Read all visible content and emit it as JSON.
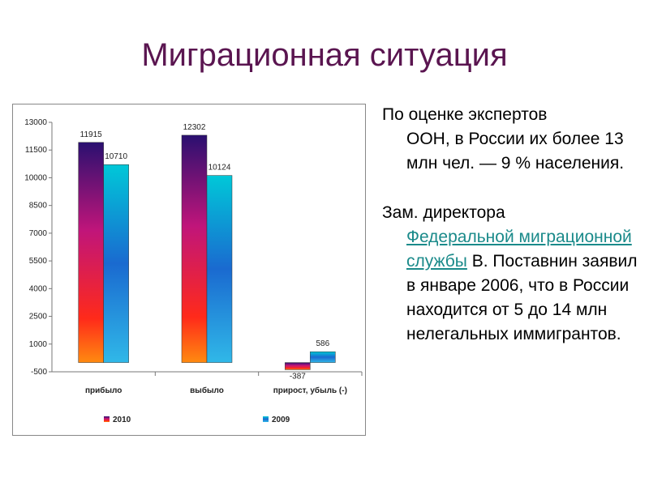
{
  "slide": {
    "title": "Миграционная ситуация"
  },
  "text": {
    "p1_lead": "По оценке экспертов",
    "p1_rest": "ООН, в России их более 13 млн чел. — 9 % населения.",
    "p2_lead": "Зам. директора",
    "p2_link": "Федеральной миграционной службы",
    "p2_rest": " В. Поставнин заявил в январе 2006, что в России находится от 5 до 14 млн нелегальных иммигрантов."
  },
  "chart_data": {
    "type": "bar",
    "categories": [
      "прибыло",
      "выбыло",
      "прирост, убыль (-)"
    ],
    "series": [
      {
        "name": "2010",
        "values": [
          11915,
          12302,
          -387
        ]
      },
      {
        "name": "2009",
        "values": [
          10710,
          10124,
          586
        ]
      }
    ],
    "data_labels": [
      [
        "11915",
        "12302",
        "-387"
      ],
      [
        "10710",
        "10124",
        "586"
      ]
    ],
    "yticks": [
      "13000",
      "11500",
      "10000",
      "8500",
      "7000",
      "5500",
      "4000",
      "2500",
      "1000",
      "-500"
    ],
    "ylim": [
      -500,
      13000
    ],
    "grid": false,
    "legend_position": "bottom",
    "colors": {
      "series_2010": [
        "#2a1070",
        "#c0157a",
        "#ff2a1a",
        "#ff8a10"
      ],
      "series_2009": [
        "#00c8d8",
        "#1a6ad0",
        "#30b8e8"
      ]
    }
  }
}
